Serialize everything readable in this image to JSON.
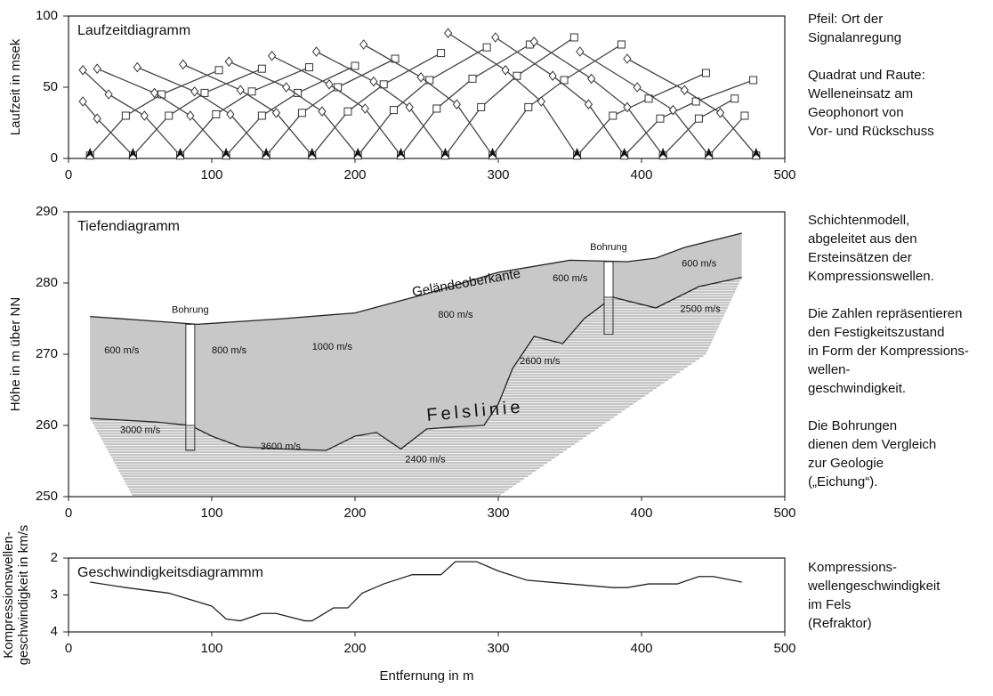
{
  "chart_data": [
    {
      "type": "line",
      "title": "Laufzeitdiagramm",
      "ylabel": "Laufzeit in msek",
      "xlim": [
        0,
        500
      ],
      "xticks": [
        0,
        100,
        200,
        300,
        400,
        500
      ],
      "ylim": [
        0,
        100
      ],
      "yticks": [
        0,
        50,
        100
      ],
      "color": "#444",
      "markers": true,
      "shots": [
        15,
        45,
        78,
        110,
        138,
        170,
        202,
        232,
        263,
        296,
        355,
        388,
        415,
        447,
        480
      ],
      "series": [
        {
          "x": [
            15,
            40,
            65,
            105
          ],
          "values": [
            2,
            30,
            45,
            62
          ]
        },
        {
          "x": [
            10,
            20,
            45,
            70,
            95,
            135
          ],
          "values": [
            40,
            28,
            2,
            30,
            46,
            63
          ]
        },
        {
          "x": [
            10,
            28,
            53,
            78,
            103,
            128,
            168
          ],
          "values": [
            62,
            45,
            30,
            2,
            31,
            47,
            64
          ]
        },
        {
          "x": [
            20,
            60,
            85,
            110,
            135,
            160,
            200
          ],
          "values": [
            63,
            46,
            30,
            2,
            30,
            46,
            65
          ]
        },
        {
          "x": [
            48,
            88,
            113,
            138,
            163,
            188,
            228
          ],
          "values": [
            64,
            47,
            31,
            2,
            32,
            50,
            70
          ]
        },
        {
          "x": [
            80,
            120,
            145,
            170,
            195,
            220,
            260
          ],
          "values": [
            66,
            48,
            32,
            2,
            33,
            52,
            74
          ]
        },
        {
          "x": [
            112,
            152,
            177,
            202,
            227,
            252,
            292
          ],
          "values": [
            68,
            50,
            33,
            2,
            34,
            55,
            78
          ]
        },
        {
          "x": [
            142,
            182,
            207,
            232,
            257,
            282,
            322
          ],
          "values": [
            72,
            52,
            35,
            2,
            35,
            56,
            80
          ]
        },
        {
          "x": [
            173,
            213,
            238,
            263,
            288,
            313,
            353
          ],
          "values": [
            75,
            54,
            36,
            2,
            36,
            58,
            85
          ]
        },
        {
          "x": [
            206,
            246,
            271,
            296,
            321,
            346,
            386
          ],
          "values": [
            80,
            57,
            38,
            2,
            36,
            55,
            80
          ]
        },
        {
          "x": [
            265,
            305,
            330,
            355,
            380,
            405,
            445
          ],
          "values": [
            88,
            62,
            40,
            2,
            30,
            42,
            60
          ]
        },
        {
          "x": [
            298,
            338,
            363,
            388,
            413,
            438,
            478
          ],
          "values": [
            85,
            58,
            38,
            2,
            28,
            40,
            55
          ]
        },
        {
          "x": [
            325,
            365,
            390,
            415,
            440,
            465
          ],
          "values": [
            82,
            56,
            36,
            2,
            28,
            42
          ]
        },
        {
          "x": [
            357,
            397,
            422,
            447,
            472
          ],
          "values": [
            75,
            50,
            34,
            2,
            30
          ]
        },
        {
          "x": [
            390,
            430,
            455,
            480
          ],
          "values": [
            70,
            48,
            32,
            2
          ]
        }
      ],
      "side_text": [
        [
          "Pfeil: Ort der",
          "Signalanregung"
        ],
        [
          "Quadrat und Raute:",
          "Welleneinsatz am",
          "Geophonort von",
          "Vor- und Rückschuss"
        ]
      ]
    },
    {
      "type": "line",
      "title": "Tiefendiagramm",
      "ylabel": "Höhe in m über NN",
      "xlim": [
        0,
        500
      ],
      "xticks": [
        0,
        100,
        200,
        300,
        400,
        500
      ],
      "ylim": [
        250,
        290
      ],
      "yticks": [
        250,
        260,
        270,
        280,
        290
      ],
      "color": "#222",
      "series": [
        {
          "x": [
            15,
            50,
            90,
            150,
            200,
            250,
            300,
            350,
            390,
            410,
            430,
            470
          ],
          "values": [
            275.3,
            274.8,
            274.2,
            275,
            275.8,
            278.5,
            281.5,
            283.2,
            283,
            283.5,
            285,
            287
          ]
        },
        {
          "x": [
            15,
            60,
            85,
            100,
            120,
            140,
            160,
            180,
            200,
            215,
            232,
            250,
            270,
            290,
            300,
            310,
            325,
            345,
            360,
            380,
            410,
            440,
            470
          ],
          "values": [
            261,
            260.5,
            260,
            258.5,
            257,
            256.8,
            256.6,
            256.5,
            258.5,
            259,
            256.7,
            259.5,
            259.8,
            260,
            263,
            268,
            272.5,
            271.5,
            275,
            278,
            276.5,
            279.5,
            280.8
          ]
        }
      ],
      "rock_base": {
        "x": [
          15,
          45,
          300,
          445,
          470
        ],
        "values": [
          261,
          250,
          250,
          270,
          280.8
        ]
      },
      "boreholes": [
        {
          "label": "Bohrung",
          "x": 85,
          "top": 274.2,
          "rock": 260,
          "bottom": 256.5
        },
        {
          "label": "Bohrung",
          "x": 377,
          "top": 283,
          "rock": 278,
          "bottom": 272.8
        }
      ],
      "surface_label": {
        "text": "Geländeoberkante",
        "x": 240,
        "y": 278.6
      },
      "bedrock_label": {
        "text": "Felslinie",
        "x": 250,
        "y": 261.3
      },
      "annotations": [
        {
          "text": "600 m/s",
          "x": 25,
          "y": 270.5
        },
        {
          "text": "800 m/s",
          "x": 100,
          "y": 270.5
        },
        {
          "text": "1000 m/s",
          "x": 170,
          "y": 271
        },
        {
          "text": "800 m/s",
          "x": 258,
          "y": 275.5
        },
        {
          "text": "600 m/s",
          "x": 338,
          "y": 280.6
        },
        {
          "text": "600 m/s",
          "x": 428,
          "y": 282.7
        },
        {
          "text": "2500 m/s",
          "x": 427,
          "y": 276.3
        },
        {
          "text": "2600 m/s",
          "x": 315,
          "y": 269
        },
        {
          "text": "3000 m/s",
          "x": 36,
          "y": 259.3
        },
        {
          "text": "3600 m/s",
          "x": 134,
          "y": 257
        },
        {
          "text": "2400 m/s",
          "x": 235,
          "y": 255.2
        }
      ],
      "side_text": [
        [
          "Schichtenmodell,",
          "abgeleitet aus den",
          "Ersteinsätzen der",
          "Kompressionswellen."
        ],
        [
          "Die Zahlen repräsentieren",
          "den Festigkeitszustand",
          "in Form der Kompressions-",
          "wellen-",
          "geschwindigkeit."
        ],
        [
          "Die Bohrungen",
          "dienen dem Vergleich",
          "zur Geologie",
          "(„Eichung“)."
        ]
      ]
    },
    {
      "type": "line",
      "title": "Geschwindigkeitsdiagrammm",
      "ylabel": [
        "Kompressionswellen-",
        "geschwindigkeit in km/s"
      ],
      "xlabel": "Entfernung in m",
      "xlim": [
        0,
        500
      ],
      "xticks": [
        0,
        100,
        200,
        300,
        400,
        500
      ],
      "ylim": [
        4,
        2
      ],
      "yticks": [
        2,
        3,
        4
      ],
      "color": "#222",
      "series": [
        {
          "x": [
            15,
            40,
            70,
            100,
            110,
            120,
            135,
            145,
            165,
            170,
            185,
            195,
            205,
            220,
            240,
            260,
            270,
            285,
            300,
            320,
            350,
            380,
            390,
            405,
            425,
            440,
            450,
            470
          ],
          "values": [
            2.65,
            2.8,
            2.95,
            3.3,
            3.65,
            3.7,
            3.5,
            3.5,
            3.7,
            3.7,
            3.35,
            3.35,
            2.95,
            2.7,
            2.45,
            2.45,
            2.1,
            2.1,
            2.35,
            2.6,
            2.7,
            2.8,
            2.8,
            2.7,
            2.7,
            2.5,
            2.5,
            2.65
          ]
        }
      ],
      "side_text": [
        [
          "Kompressions-",
          "wellengeschwindigkeit",
          "im Fels",
          "(Refraktor)"
        ]
      ]
    }
  ]
}
